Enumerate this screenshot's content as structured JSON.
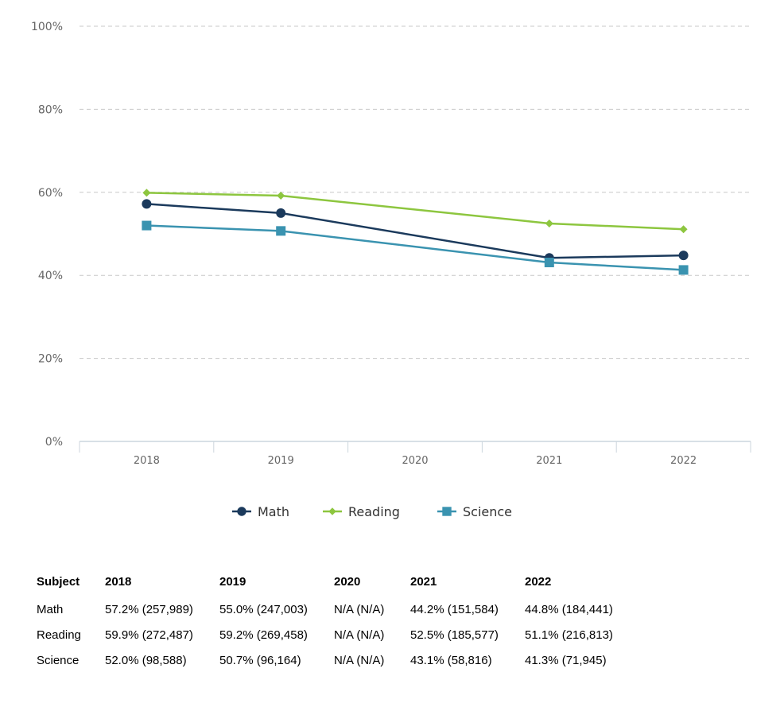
{
  "chart_data": {
    "type": "line",
    "categories": [
      "2018",
      "2019",
      "2020",
      "2021",
      "2022"
    ],
    "series": [
      {
        "name": "Math",
        "values": [
          57.2,
          55.0,
          null,
          44.2,
          44.8
        ],
        "color": "#1b3a5c",
        "marker": "circle"
      },
      {
        "name": "Reading",
        "values": [
          59.9,
          59.2,
          null,
          52.5,
          51.1
        ],
        "color": "#8dc63f",
        "marker": "diamond"
      },
      {
        "name": "Science",
        "values": [
          52.0,
          50.7,
          null,
          43.1,
          41.3
        ],
        "color": "#3a93b0",
        "marker": "square"
      }
    ],
    "yticks": [
      "0%",
      "20%",
      "40%",
      "60%",
      "80%",
      "100%"
    ],
    "ylim": [
      0,
      100
    ],
    "grid": true,
    "legend": "bottom-center",
    "title": "",
    "xlabel": "",
    "ylabel": ""
  },
  "table": {
    "headers": [
      "Subject",
      "2018",
      "2019",
      "2020",
      "2021",
      "2022"
    ],
    "rows": [
      [
        "Math",
        "57.2% (257,989)",
        "55.0% (247,003)",
        "N/A (N/A)",
        "44.2% (151,584)",
        "44.8% (184,441)"
      ],
      [
        "Reading",
        "59.9% (272,487)",
        "59.2% (269,458)",
        "N/A (N/A)",
        "52.5% (185,577)",
        "51.1% (216,813)"
      ],
      [
        "Science",
        "52.0% (98,588)",
        "50.7% (96,164)",
        "N/A (N/A)",
        "43.1% (58,816)",
        "41.3% (71,945)"
      ]
    ]
  }
}
